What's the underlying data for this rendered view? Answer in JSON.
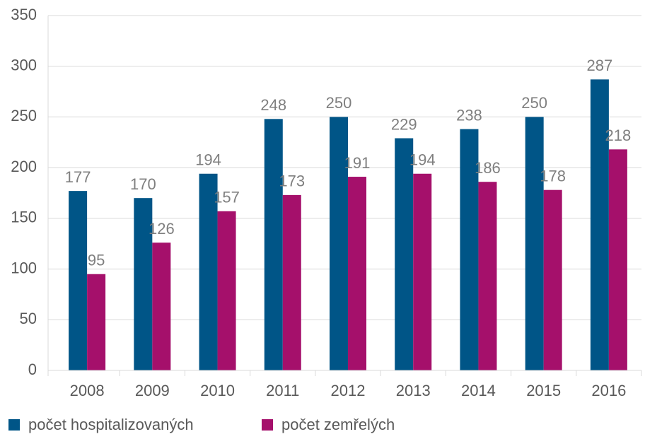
{
  "chart_data": {
    "type": "bar",
    "categories": [
      "2008",
      "2009",
      "2010",
      "2011",
      "2012",
      "2013",
      "2014",
      "2015",
      "2016"
    ],
    "series": [
      {
        "name": "počet hospitalizovaných",
        "color": "#005587",
        "values": [
          177,
          170,
          194,
          248,
          250,
          229,
          238,
          250,
          287
        ]
      },
      {
        "name": "počet zemřelých",
        "color": "#a5106b",
        "values": [
          95,
          126,
          157,
          173,
          191,
          194,
          186,
          178,
          218
        ]
      }
    ],
    "ylim": [
      0,
      350
    ],
    "yticks": [
      0,
      50,
      100,
      150,
      200,
      250,
      300,
      350
    ],
    "grid": true,
    "legend": "bottom"
  }
}
